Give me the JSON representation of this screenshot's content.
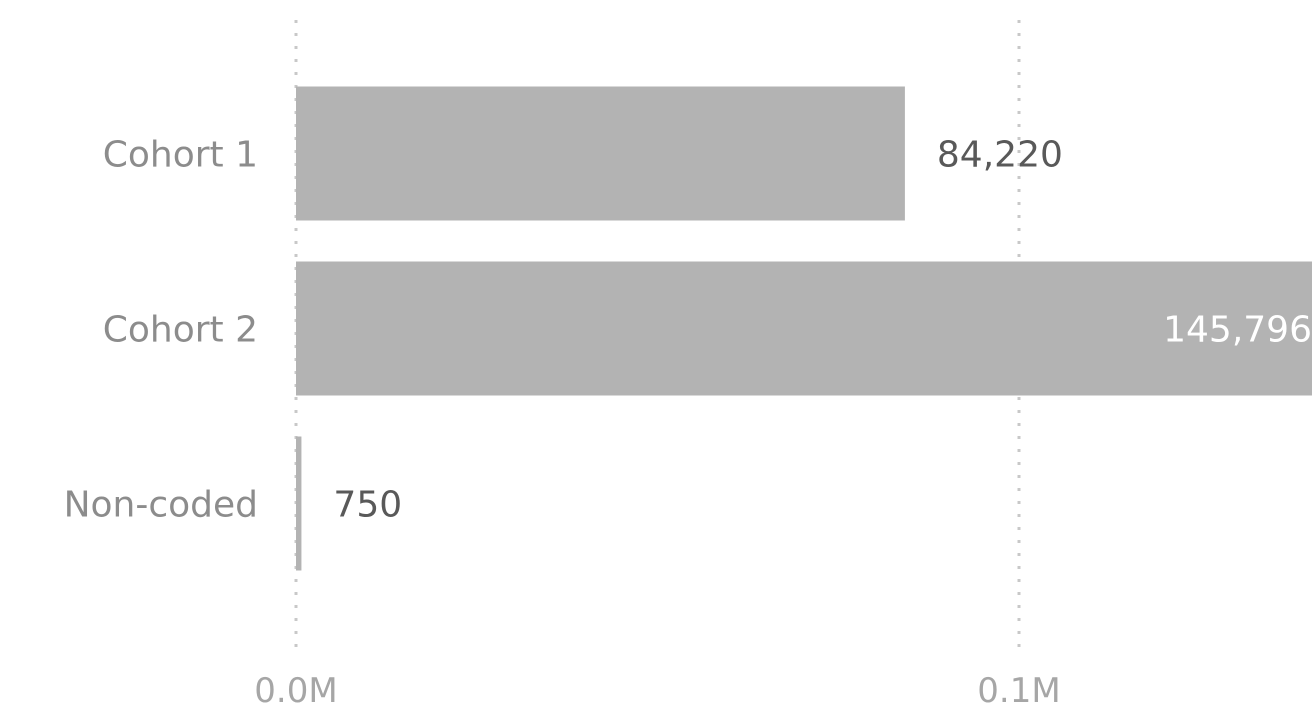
{
  "chart_data": {
    "type": "bar",
    "orientation": "horizontal",
    "categories": [
      "Cohort 1",
      "Cohort 2",
      "Non-coded"
    ],
    "values": [
      84220,
      145796,
      750
    ],
    "data_labels": [
      "84,220",
      "145,796",
      "750"
    ],
    "x_ticks": [
      {
        "value": 0,
        "label": "0.0M"
      },
      {
        "value": 100000,
        "label": "0.1M"
      }
    ],
    "xlim": [
      0,
      145796
    ],
    "grid": "vertical dotted",
    "legend": "none",
    "colors": {
      "bar": "#b3b3b3",
      "category_label": "#8c8c8c",
      "tick_label": "#a6a6a6",
      "data_label_outside": "#595959",
      "data_label_inside": "#ffffff",
      "gridline": "#c8c8c8"
    }
  }
}
